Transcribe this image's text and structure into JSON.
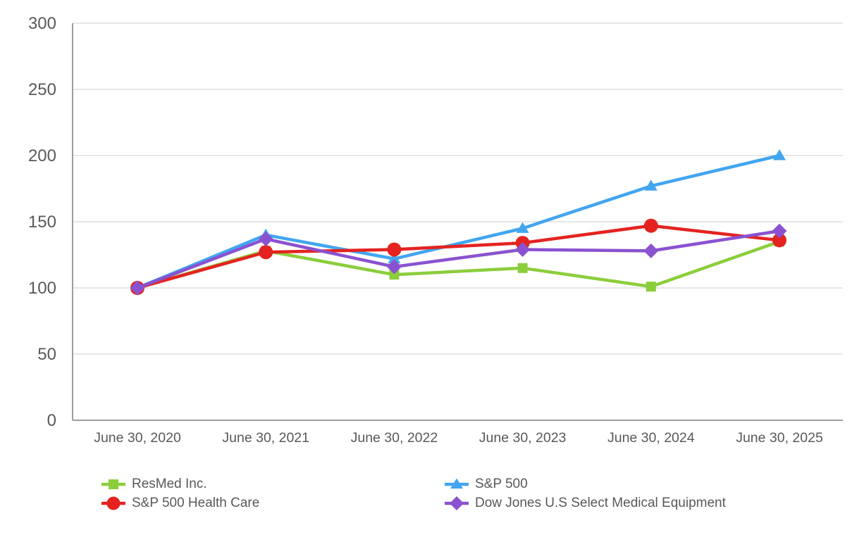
{
  "chart_data": {
    "type": "line",
    "title": "",
    "xlabel": "",
    "ylabel": "",
    "x_labels": [
      "June 30, 2020",
      "June 30, 2021",
      "June 30, 2022",
      "June 30, 2023",
      "June 30, 2024",
      "June 30, 2025"
    ],
    "y_ticks": [
      0,
      50,
      100,
      150,
      200,
      250,
      300
    ],
    "ylim": [
      0,
      300
    ],
    "grid": "horizontal-gridlines-on",
    "legend_position": "bottom-two-columns",
    "series": [
      {
        "name": "ResMed Inc.",
        "marker": "square",
        "color": "#8ccd3c",
        "values": [
          100,
          128,
          110,
          115,
          101,
          135
        ]
      },
      {
        "name": "S&P 500",
        "marker": "triangle",
        "color": "#42a5f0",
        "values": [
          100,
          140,
          122,
          145,
          177,
          200
        ]
      },
      {
        "name": "S&P 500 Health Care",
        "marker": "circle",
        "color": "#e42320",
        "values": [
          100,
          127,
          129,
          134,
          147,
          136
        ]
      },
      {
        "name": "Dow Jones U.S Select Medical Equipment",
        "marker": "diamond",
        "color": "#8a52d0",
        "values": [
          100,
          137,
          116,
          129,
          128,
          143
        ]
      }
    ],
    "legend_columns": [
      [
        0,
        2
      ],
      [
        1,
        3
      ]
    ]
  },
  "style": {
    "axis_line_color": "#9e9e9e",
    "gridline_color": "#e7e7e7",
    "tick_label_color": "#595959",
    "background": "#ffffff"
  }
}
